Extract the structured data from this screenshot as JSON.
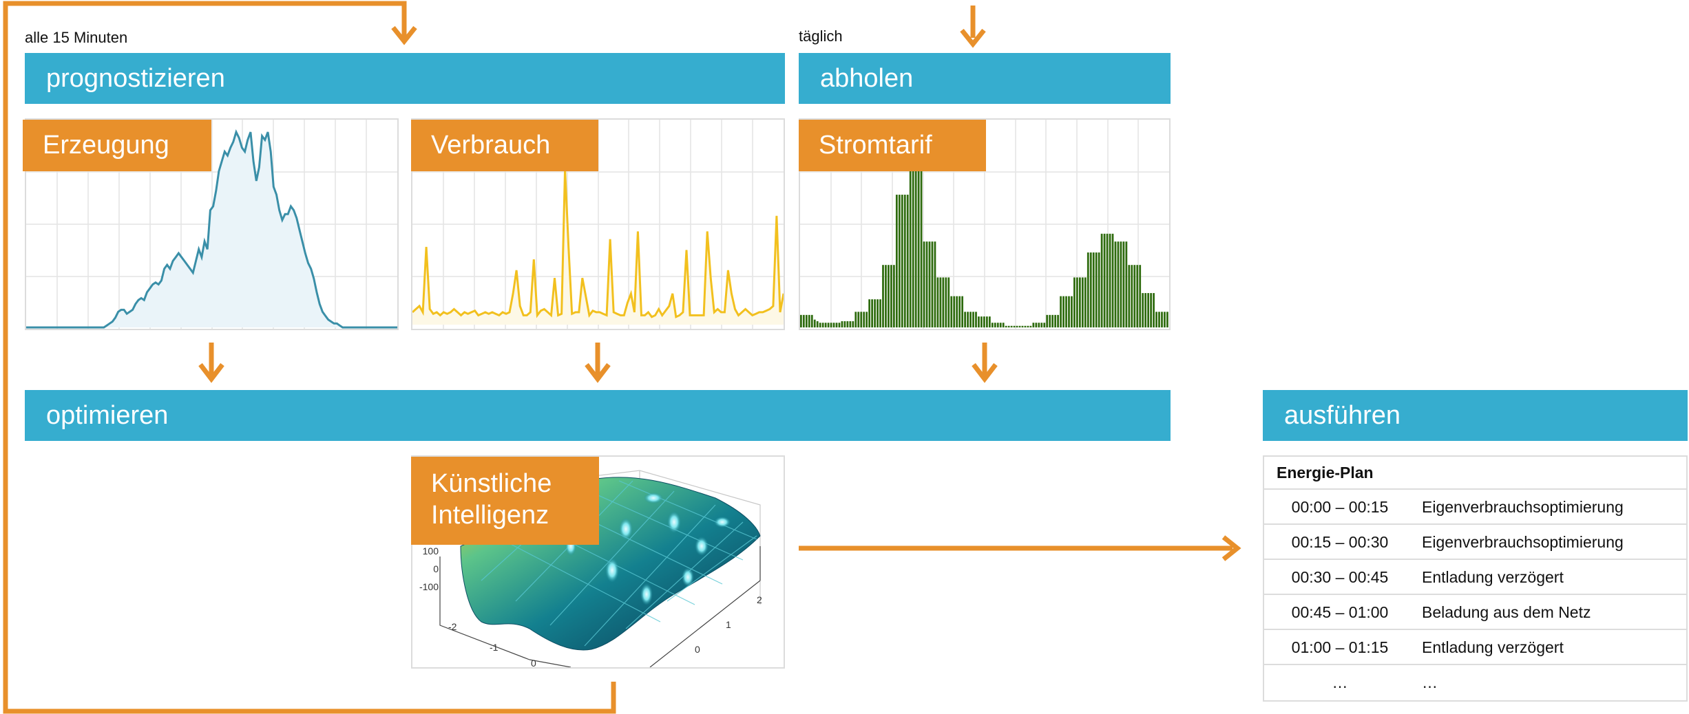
{
  "labels": {
    "interval": "alle 15 Minuten",
    "daily": "täglich"
  },
  "stages": {
    "forecast": "prognostizieren",
    "fetch": "abholen",
    "optimize": "optimieren",
    "execute": "ausführen"
  },
  "panels": {
    "generation": "Erzeugung",
    "consumption": "Verbrauch",
    "tariff": "Stromtarif",
    "ai_line1": "Künstliche",
    "ai_line2": "Intelligenz"
  },
  "surface_ticks": {
    "z": [
      "100",
      "0",
      "-100"
    ],
    "x": [
      "-2",
      "-1",
      "0"
    ],
    "y": [
      "2",
      "1",
      "0"
    ]
  },
  "plan": {
    "title": "Energie-Plan",
    "rows": [
      {
        "time": "00:00 – 00:15",
        "action": "Eigenverbrauchsoptimierung"
      },
      {
        "time": "00:15 – 00:30",
        "action": "Eigenverbrauchsoptimierung"
      },
      {
        "time": "00:30 – 00:45",
        "action": "Entladung verzögert"
      },
      {
        "time": "00:45 – 01:00",
        "action": "Beladung aus dem Netz"
      },
      {
        "time": "01:00 – 01:15",
        "action": "Entladung verzögert"
      },
      {
        "time": "…",
        "action": "…"
      }
    ]
  },
  "colors": {
    "stage_bar": "#36adcf",
    "label_orange": "#e8902b",
    "arrow": "#e8902b",
    "generation_line": "#3a8fa8",
    "consumption_line": "#f2c01e",
    "tariff_bar": "#2e6b0e"
  },
  "chart_data": [
    {
      "type": "area",
      "series": [
        {
          "values": [
            0,
            0,
            0,
            0,
            0,
            0,
            0,
            0,
            0,
            0,
            0,
            0,
            0,
            0,
            0,
            0,
            0,
            0,
            0,
            0,
            0,
            0,
            0,
            0,
            0,
            0,
            0,
            0,
            1,
            2,
            3,
            5,
            8,
            9,
            9,
            7,
            8,
            9,
            12,
            14,
            15,
            14,
            18,
            20,
            22,
            23,
            22,
            24,
            30,
            32,
            30,
            34,
            36,
            38,
            36,
            34,
            32,
            30,
            28,
            34,
            40,
            36,
            44,
            40,
            60,
            62,
            70,
            80,
            85,
            90,
            88,
            92,
            95,
            100,
            97,
            92,
            90,
            96,
            100,
            85,
            75,
            82,
            98,
            96,
            100,
            90,
            72,
            68,
            60,
            55,
            58,
            58,
            62,
            60,
            56,
            50,
            44,
            38,
            33,
            30,
            25,
            18,
            12,
            8,
            6,
            4,
            3,
            2,
            2,
            1,
            0,
            0,
            0,
            0,
            0,
            0,
            0,
            0,
            0,
            0,
            0,
            0,
            0,
            0,
            0,
            0,
            0,
            0,
            0,
            0
          ]
        }
      ]
    },
    {
      "type": "line",
      "series": [
        {
          "values": [
            8,
            10,
            12,
            8,
            50,
            10,
            7,
            8,
            6,
            8,
            7,
            8,
            10,
            8,
            6,
            8,
            7,
            8,
            9,
            6,
            7,
            8,
            7,
            8,
            7,
            6,
            8,
            7,
            8,
            20,
            35,
            12,
            6,
            6,
            8,
            42,
            6,
            9,
            10,
            8,
            6,
            30,
            6,
            7,
            100,
            50,
            7,
            8,
            8,
            30,
            18,
            6,
            9,
            8,
            8,
            7,
            6,
            55,
            8,
            7,
            6,
            6,
            14,
            20,
            8,
            60,
            6,
            6,
            8,
            5,
            6,
            10,
            6,
            9,
            12,
            20,
            5,
            6,
            8,
            48,
            6,
            6,
            6,
            6,
            6,
            60,
            30,
            8,
            10,
            8,
            8,
            35,
            20,
            10,
            6,
            8,
            10,
            8,
            6,
            7,
            8,
            8,
            9,
            10,
            12,
            70,
            8,
            20
          ]
        }
      ]
    },
    {
      "type": "bar",
      "series": [
        {
          "values": [
            8,
            8,
            8,
            8,
            8,
            5,
            4,
            3,
            3,
            3,
            3,
            3,
            3,
            3,
            3,
            4,
            4,
            4,
            4,
            4,
            10,
            10,
            10,
            10,
            10,
            18,
            18,
            18,
            18,
            18,
            40,
            40,
            40,
            40,
            40,
            85,
            85,
            85,
            85,
            85,
            100,
            100,
            100,
            100,
            100,
            55,
            55,
            55,
            55,
            55,
            32,
            32,
            32,
            32,
            32,
            20,
            20,
            20,
            20,
            20,
            10,
            10,
            10,
            10,
            10,
            7,
            7,
            7,
            7,
            7,
            3,
            3,
            3,
            3,
            3,
            1,
            1,
            1,
            1,
            1,
            1,
            1,
            1,
            1,
            1,
            3,
            3,
            3,
            3,
            3,
            8,
            8,
            8,
            8,
            8,
            20,
            20,
            20,
            20,
            20,
            32,
            32,
            32,
            32,
            32,
            48,
            48,
            48,
            48,
            48,
            60,
            60,
            60,
            60,
            60,
            55,
            55,
            55,
            55,
            55,
            40,
            40,
            40,
            40,
            40,
            22,
            22,
            22,
            22,
            22,
            10,
            10,
            10,
            10,
            10
          ]
        }
      ]
    }
  ]
}
